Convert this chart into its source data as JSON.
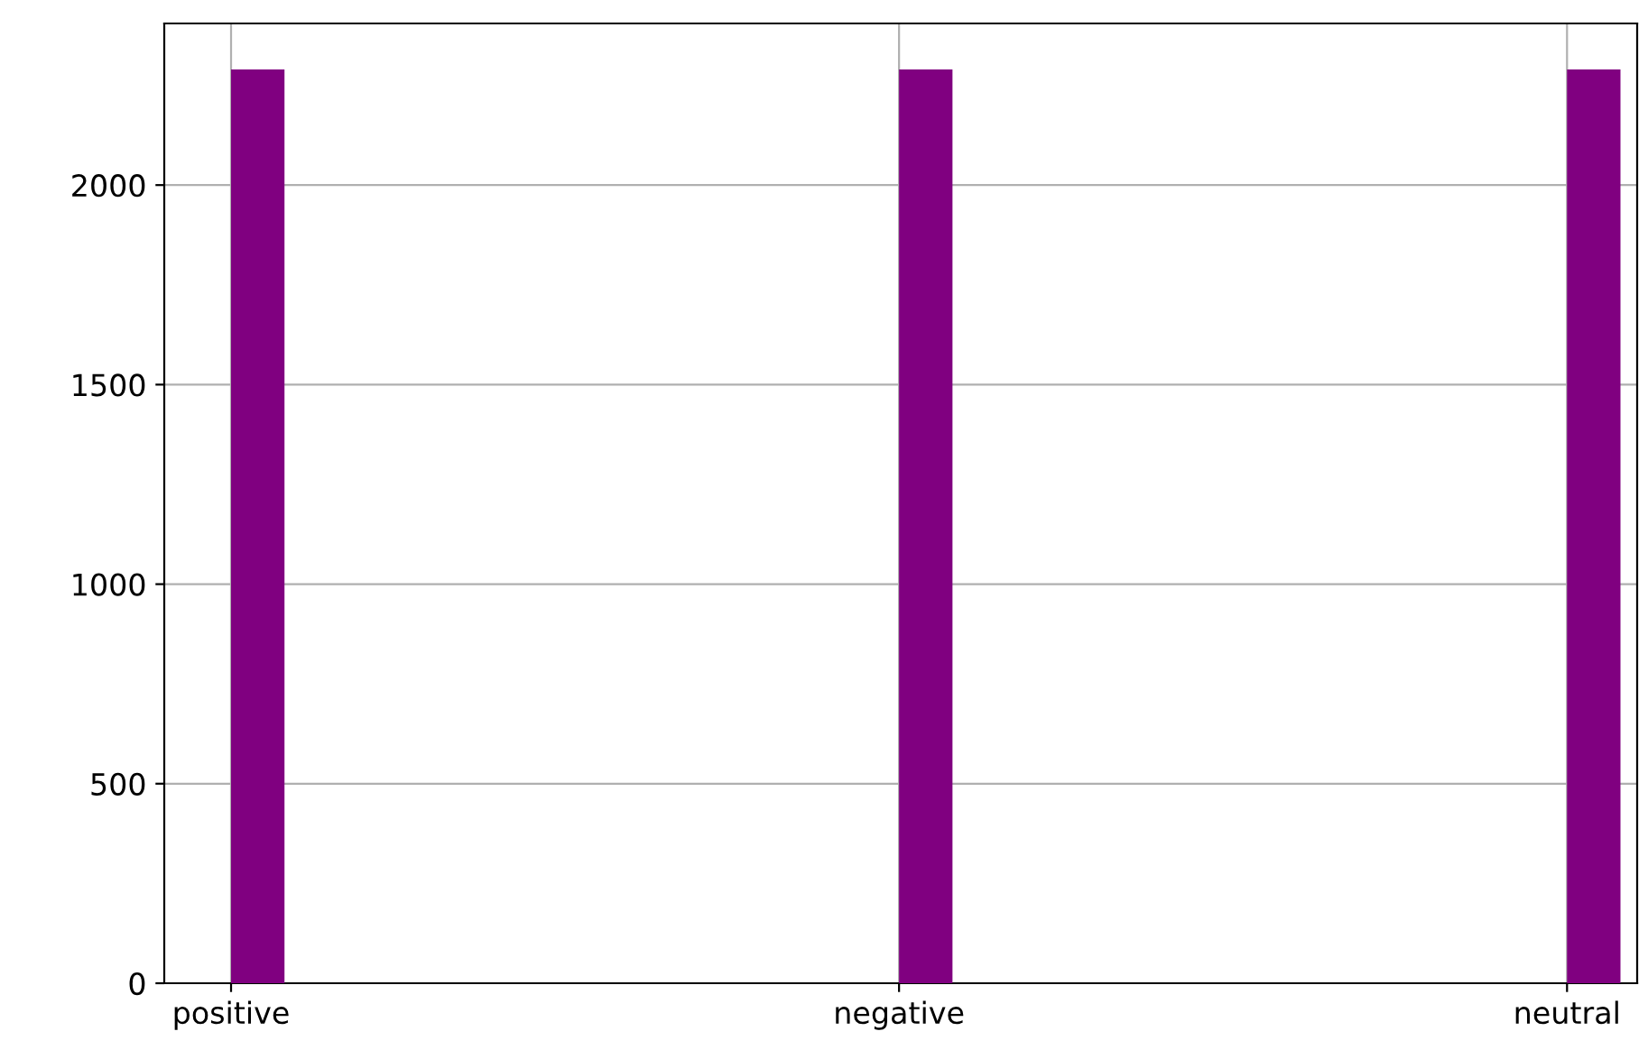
{
  "chart_data": {
    "type": "bar",
    "categories": [
      "positive",
      "negative",
      "neutral"
    ],
    "values": [
      2290,
      2290,
      2290
    ],
    "color": "#800080",
    "ylim": [
      0,
      2405
    ],
    "yticks": [
      0,
      500,
      1000,
      1500,
      2000
    ],
    "grid": true
  }
}
